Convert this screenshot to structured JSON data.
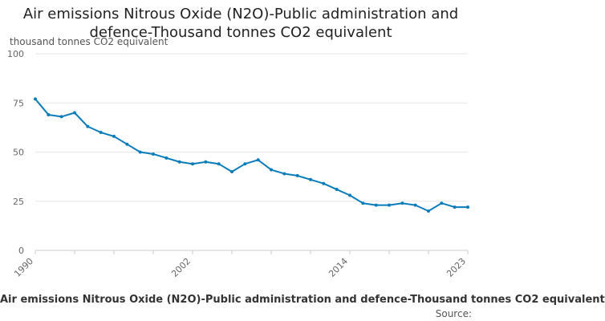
{
  "chart_data": {
    "type": "line",
    "title": "Air emissions Nitrous Oxide (N2O)-Public administration and defence-Thousand tonnes CO2 equivalent",
    "ylabel": "thousand tonnes CO2 equivalent",
    "xlabel": "Air emissions Nitrous Oxide (N2O)-Public administration and defence-Thousand tonnes CO2 equivalent",
    "source_label": "Source:",
    "x": [
      1990,
      1991,
      1992,
      1993,
      1994,
      1995,
      1996,
      1997,
      1998,
      1999,
      2000,
      2001,
      2002,
      2003,
      2004,
      2005,
      2006,
      2007,
      2008,
      2009,
      2010,
      2011,
      2012,
      2013,
      2014,
      2015,
      2016,
      2017,
      2018,
      2019,
      2020,
      2021,
      2022,
      2023
    ],
    "series": [
      {
        "values": [
          77,
          69,
          68,
          70,
          63,
          60,
          58,
          54,
          50,
          49,
          47,
          45,
          44,
          45,
          44,
          40,
          44,
          46,
          41,
          39,
          38,
          36,
          34,
          31,
          28,
          24,
          23,
          23,
          24,
          23,
          20,
          24,
          22,
          22
        ],
        "color": "#0b7cba"
      }
    ],
    "x_ticks": [
      1990,
      2002,
      2014,
      2023
    ],
    "y_ticks": [
      0,
      25,
      50,
      75,
      100
    ],
    "ylim": [
      0,
      100
    ],
    "xlim": [
      1990,
      2023
    ],
    "grid": true,
    "legend": "none"
  }
}
